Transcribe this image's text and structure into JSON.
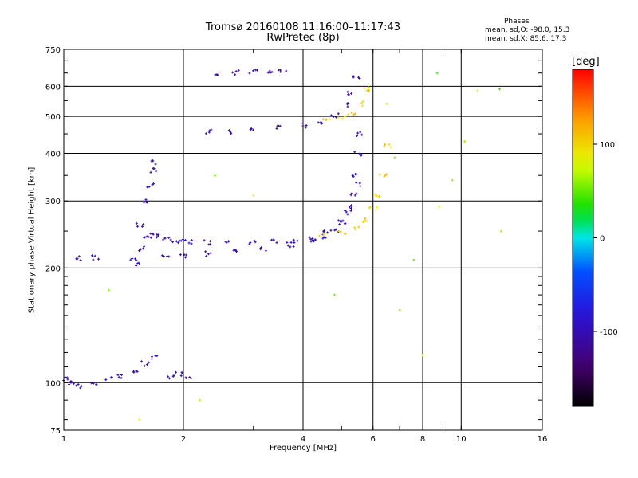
{
  "chart_data": {
    "type": "scatter",
    "title": "Tromsø 20160108 11:16:00–11:17:43",
    "subtitle": "RwPretec (8p)",
    "phases_header": "Phases",
    "phases_stats": [
      "mean, sd,O: -98.0, 15.3",
      "mean, sd,X: 85.6, 17.3"
    ],
    "xlabel": "Frequency [MHz]",
    "ylabel": "Stationary phase Virtual Height [km]",
    "x_scale": "log",
    "y_scale": "log",
    "xlim": [
      1,
      16
    ],
    "ylim": [
      75,
      750
    ],
    "xticks": [
      1,
      2,
      4,
      6,
      8,
      10,
      16
    ],
    "yticks": [
      75,
      100,
      200,
      300,
      400,
      500,
      600,
      750
    ],
    "grid": true,
    "colorbar": {
      "label": "[deg]",
      "range": [
        -180,
        180
      ],
      "ticks": [
        100,
        0,
        -100
      ]
    },
    "series": [
      {
        "name": "O-mode F layer",
        "color_phase": -100,
        "x": [
          1.55,
          1.58,
          1.62,
          1.65,
          1.72,
          1.8,
          1.9,
          2.0,
          2.1,
          2.3,
          2.6,
          3.0,
          3.4,
          3.8,
          4.2,
          4.5,
          4.8,
          5.0,
          5.2,
          5.35,
          5.45,
          5.5,
          5.55
        ],
        "y": [
          205,
          225,
          240,
          245,
          242,
          239,
          236,
          235,
          234,
          233,
          232,
          233,
          234,
          236,
          238,
          242,
          250,
          262,
          280,
          310,
          350,
          400,
          450
        ]
      },
      {
        "name": "O-mode F layer (lower trace)",
        "color_phase": -100,
        "x": [
          1.8,
          2.0,
          2.3,
          2.7,
          3.2,
          3.7,
          4.2,
          4.6,
          5.0,
          5.3,
          5.5
        ],
        "y": [
          215,
          216,
          218,
          221,
          225,
          230,
          238,
          248,
          265,
          290,
          330
        ]
      },
      {
        "name": "X-mode F layer",
        "color_phase": 100,
        "x": [
          4.5,
          5.0,
          5.5,
          5.8,
          6.0,
          6.2,
          6.35,
          6.5
        ],
        "y": [
          245,
          248,
          255,
          268,
          285,
          310,
          350,
          420
        ]
      },
      {
        "name": "O-mode multihop",
        "color_phase": -100,
        "x": [
          2.3,
          2.6,
          3.0,
          3.5,
          4.0,
          4.4,
          4.8,
          5.1,
          5.3,
          5.45
        ],
        "y": [
          455,
          457,
          460,
          466,
          474,
          484,
          505,
          535,
          575,
          630
        ]
      },
      {
        "name": "X-mode multihop",
        "color_phase": 100,
        "x": [
          4.6,
          5.0,
          5.3,
          5.6,
          5.8
        ],
        "y": [
          488,
          495,
          510,
          540,
          590
        ]
      },
      {
        "name": "Short trace near 650 km",
        "color_phase": -110,
        "x": [
          2.45,
          2.7,
          3.0,
          3.3,
          3.55
        ],
        "y": [
          648,
          652,
          655,
          654,
          657
        ]
      },
      {
        "name": "E-layer echoes",
        "color_phase": -100,
        "x": [
          1.0,
          1.05,
          1.1,
          1.2,
          1.3,
          1.4,
          1.5,
          1.6,
          1.7,
          1.85,
          1.95,
          2.05
        ],
        "y": [
          102,
          100,
          98,
          100,
          103,
          104,
          108,
          112,
          116,
          104,
          105,
          104
        ]
      },
      {
        "name": "Low-frequency spread echoes",
        "color_phase": -100,
        "x": [
          1.1,
          1.2,
          1.5,
          1.55,
          1.6,
          1.65,
          1.68,
          1.7
        ],
        "y": [
          212,
          213,
          210,
          260,
          300,
          330,
          360,
          380
        ]
      },
      {
        "name": "Scattered points",
        "color_phase": 60,
        "x": [
          1.3,
          1.55,
          2.2,
          2.4,
          3.0,
          4.8,
          6.5,
          6.8,
          7.6,
          8.7,
          8.8,
          9.5,
          11.0,
          12.5,
          12.6,
          8.0,
          7.0,
          10.2
        ],
        "y": [
          175,
          80,
          90,
          350,
          310,
          170,
          540,
          390,
          210,
          650,
          290,
          340,
          585,
          590,
          250,
          118,
          155,
          430
        ]
      }
    ]
  }
}
